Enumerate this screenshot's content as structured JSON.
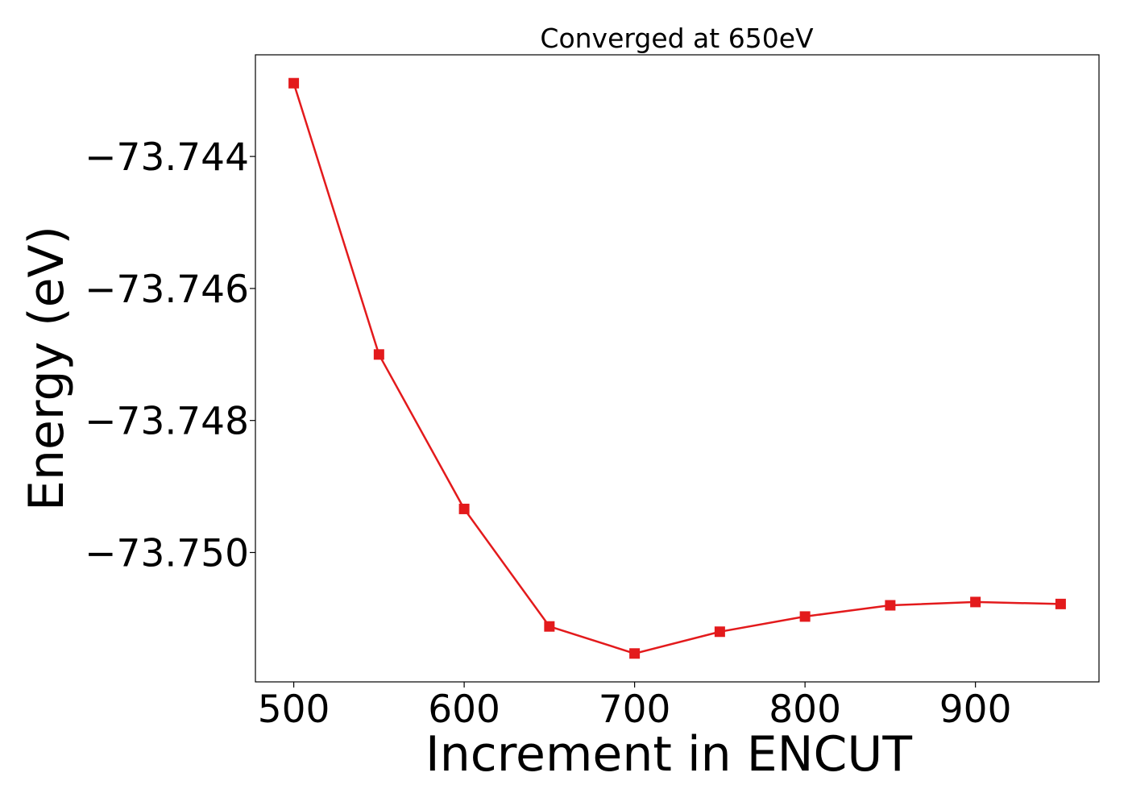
{
  "chart_data": {
    "type": "line",
    "title": "Converged at 650eV",
    "xlabel": "Increment in ENCUT",
    "ylabel": "Energy (eV)",
    "xlim": [
      477.5,
      972.5
    ],
    "ylim": [
      -73.75196,
      -73.74246
    ],
    "xticks": [
      500,
      600,
      700,
      800,
      900
    ],
    "xtick_labels": [
      "500",
      "600",
      "700",
      "800",
      "900"
    ],
    "yticks": [
      -73.744,
      -73.746,
      -73.748,
      -73.75
    ],
    "ytick_labels": [
      "−73.744",
      "−73.746",
      "−73.748",
      "−73.750"
    ],
    "grid": false,
    "series": [
      {
        "color": "#e31a1c",
        "marker": "square",
        "x": [
          500,
          550,
          600,
          650,
          700,
          750,
          800,
          850,
          900,
          950
        ],
        "y": [
          -73.74289,
          -73.747,
          -73.74934,
          -73.75112,
          -73.75153,
          -73.7512,
          -73.75097,
          -73.7508,
          -73.75075,
          -73.75078
        ]
      }
    ]
  }
}
